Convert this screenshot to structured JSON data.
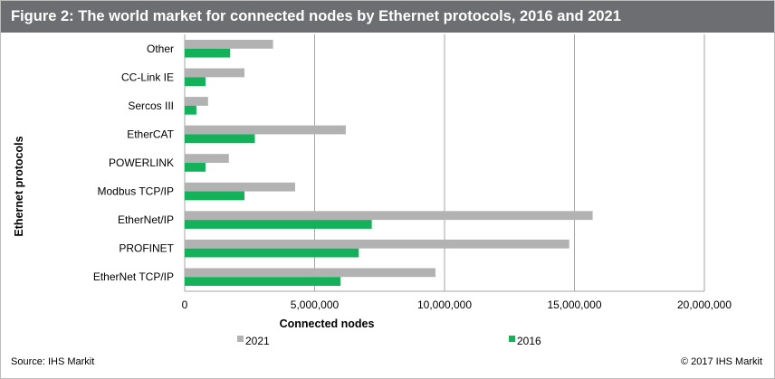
{
  "header": {
    "title": "Figure 2: The world market for connected nodes by Ethernet protocols, 2016 and 2021"
  },
  "footer": {
    "source": "Source: IHS Markit",
    "copyright": "© 2017 IHS Markit"
  },
  "colors": {
    "title_bg": "#6d6e71",
    "series_2021": "#b2b2b2",
    "series_2016": "#13b25a",
    "grid": "#a6a6a6"
  },
  "chart_data": {
    "type": "bar",
    "orientation": "horizontal",
    "title": "Figure 2: The world market for connected nodes by Ethernet protocols, 2016 and 2021",
    "xlabel": "Connected nodes",
    "ylabel": "Ethernet protocols",
    "xlim": [
      0,
      20000000
    ],
    "xticks": [
      0,
      5000000,
      10000000,
      15000000,
      20000000
    ],
    "xtick_labels": [
      "0",
      "5,000,000",
      "10,000,000",
      "15,000,000",
      "20,000,000"
    ],
    "grid": "vertical",
    "legend_position": "bottom",
    "categories": [
      "Other",
      "CC-Link IE",
      "Sercos III",
      "EtherCAT",
      "POWERLINK",
      "Modbus TCP/IP",
      "EtherNet/IP",
      "PROFINET",
      "EtherNet TCP/IP"
    ],
    "series": [
      {
        "name": "2021",
        "color": "#b2b2b2",
        "values": [
          3400000,
          2300000,
          900000,
          6200000,
          1700000,
          4250000,
          15700000,
          14800000,
          9650000
        ]
      },
      {
        "name": "2016",
        "color": "#13b25a",
        "values": [
          1750000,
          800000,
          450000,
          2700000,
          800000,
          2300000,
          7200000,
          6700000,
          6000000
        ]
      }
    ]
  }
}
